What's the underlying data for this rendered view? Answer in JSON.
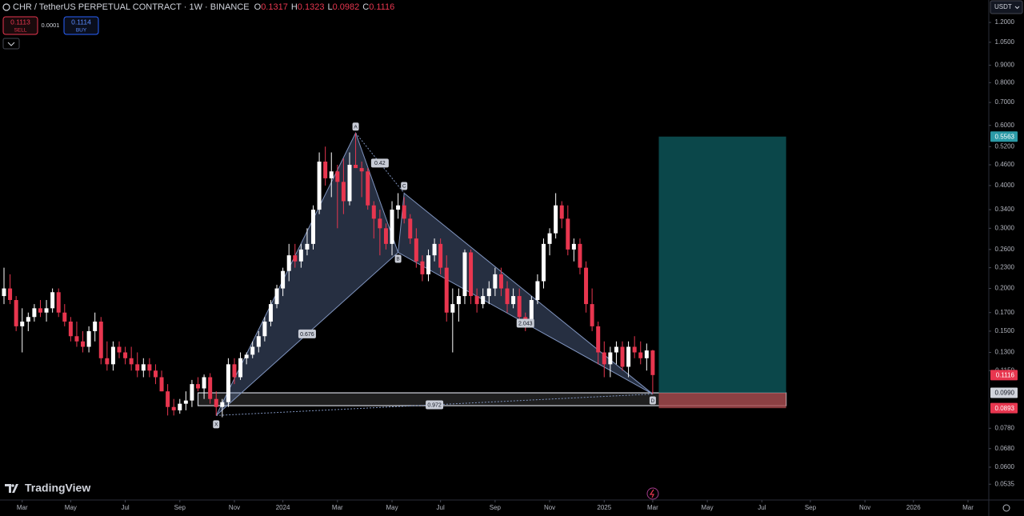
{
  "chart_data": {
    "type": "candlestick",
    "title": "CHR / TetherUS PERPETUAL CONTRACT · 1W · BINANCE",
    "ohlc_labels": [
      "O",
      "H",
      "L",
      "C"
    ],
    "sell": {
      "price": 0.1113,
      "label": "SELL"
    },
    "buy": {
      "price": 0.1114,
      "label": "BUY"
    },
    "spread": 0.0001,
    "currency": "USDT",
    "brand": "TradingView",
    "log_scale": true,
    "grid": false,
    "up_color": "#ffffff",
    "down_color": "#e8364f",
    "pattern_color": "#7f93bd",
    "target_color": "#0f5f63",
    "stop_color": "#a8494c",
    "xlim": [
      -0.66,
      162.3
    ],
    "xticks": [
      {
        "value": 3,
        "label": "Mar"
      },
      {
        "value": 11,
        "label": "May"
      },
      {
        "value": 20,
        "label": "Jul"
      },
      {
        "value": 29,
        "label": "Sep"
      },
      {
        "value": 38,
        "label": "Nov"
      },
      {
        "value": 46,
        "label": "2024"
      },
      {
        "value": 55,
        "label": "Mar"
      },
      {
        "value": 64,
        "label": "May"
      },
      {
        "value": 72,
        "label": "Jul"
      },
      {
        "value": 81,
        "label": "Sep"
      },
      {
        "value": 90,
        "label": "Nov"
      },
      {
        "value": 99,
        "label": "2025"
      },
      {
        "value": 107,
        "label": "Mar"
      },
      {
        "value": 116,
        "label": "May"
      },
      {
        "value": 125,
        "label": "Jul"
      },
      {
        "value": 133,
        "label": "Sep"
      },
      {
        "value": 142,
        "label": "Nov"
      },
      {
        "value": 150,
        "label": "2026"
      },
      {
        "value": 159,
        "label": "Mar"
      }
    ],
    "ylim": [
      0.0481,
      1.396
    ],
    "yticks": [
      {
        "value": 1.2,
        "label": "1.2000"
      },
      {
        "value": 1.05,
        "label": "1.0500"
      },
      {
        "value": 0.9,
        "label": "0.9000"
      },
      {
        "value": 0.8,
        "label": "0.8000"
      },
      {
        "value": 0.7,
        "label": "0.7000"
      },
      {
        "value": 0.6,
        "label": "0.6000"
      },
      {
        "value": 0.52,
        "label": "0.5200"
      },
      {
        "value": 0.46,
        "label": "0.4600"
      },
      {
        "value": 0.4,
        "label": "0.4000"
      },
      {
        "value": 0.34,
        "label": "0.3400"
      },
      {
        "value": 0.3,
        "label": "0.3000"
      },
      {
        "value": 0.26,
        "label": "0.2600"
      },
      {
        "value": 0.23,
        "label": "0.2300"
      },
      {
        "value": 0.2,
        "label": "0.2000"
      },
      {
        "value": 0.17,
        "label": "0.1700"
      },
      {
        "value": 0.15,
        "label": "0.1500"
      },
      {
        "value": 0.13,
        "label": "0.1300"
      },
      {
        "value": 0.115,
        "label": "0.1150"
      },
      {
        "value": 0.078,
        "label": "0.0780"
      },
      {
        "value": 0.068,
        "label": "0.0680"
      },
      {
        "value": 0.06,
        "label": "0.0600"
      },
      {
        "value": 0.0535,
        "label": "0.0535"
      }
    ],
    "candles": [
      {
        "open": 0.19,
        "high": 0.23,
        "low": 0.18,
        "close": 0.2
      },
      {
        "open": 0.2,
        "high": 0.22,
        "low": 0.18,
        "close": 0.185
      },
      {
        "open": 0.185,
        "high": 0.19,
        "low": 0.15,
        "close": 0.155
      },
      {
        "open": 0.155,
        "high": 0.175,
        "low": 0.13,
        "close": 0.16
      },
      {
        "open": 0.16,
        "high": 0.17,
        "low": 0.15,
        "close": 0.165
      },
      {
        "open": 0.165,
        "high": 0.18,
        "low": 0.16,
        "close": 0.175
      },
      {
        "open": 0.175,
        "high": 0.185,
        "low": 0.165,
        "close": 0.17
      },
      {
        "open": 0.17,
        "high": 0.185,
        "low": 0.16,
        "close": 0.175
      },
      {
        "open": 0.175,
        "high": 0.2,
        "low": 0.17,
        "close": 0.195
      },
      {
        "open": 0.195,
        "high": 0.2,
        "low": 0.165,
        "close": 0.17
      },
      {
        "open": 0.17,
        "high": 0.18,
        "low": 0.155,
        "close": 0.16
      },
      {
        "open": 0.16,
        "high": 0.165,
        "low": 0.14,
        "close": 0.145
      },
      {
        "open": 0.145,
        "high": 0.16,
        "low": 0.135,
        "close": 0.14
      },
      {
        "open": 0.14,
        "high": 0.15,
        "low": 0.13,
        "close": 0.135
      },
      {
        "open": 0.135,
        "high": 0.155,
        "low": 0.13,
        "close": 0.15
      },
      {
        "open": 0.15,
        "high": 0.17,
        "low": 0.14,
        "close": 0.16
      },
      {
        "open": 0.16,
        "high": 0.165,
        "low": 0.12,
        "close": 0.125
      },
      {
        "open": 0.125,
        "high": 0.14,
        "low": 0.115,
        "close": 0.12
      },
      {
        "open": 0.12,
        "high": 0.14,
        "low": 0.115,
        "close": 0.135
      },
      {
        "open": 0.135,
        "high": 0.14,
        "low": 0.125,
        "close": 0.13
      },
      {
        "open": 0.13,
        "high": 0.135,
        "low": 0.12,
        "close": 0.125
      },
      {
        "open": 0.125,
        "high": 0.135,
        "low": 0.115,
        "close": 0.12
      },
      {
        "open": 0.12,
        "high": 0.13,
        "low": 0.11,
        "close": 0.115
      },
      {
        "open": 0.115,
        "high": 0.125,
        "low": 0.11,
        "close": 0.12
      },
      {
        "open": 0.12,
        "high": 0.125,
        "low": 0.11,
        "close": 0.115
      },
      {
        "open": 0.115,
        "high": 0.12,
        "low": 0.105,
        "close": 0.11
      },
      {
        "open": 0.11,
        "high": 0.115,
        "low": 0.1,
        "close": 0.1
      },
      {
        "open": 0.1,
        "high": 0.105,
        "low": 0.085,
        "close": 0.09
      },
      {
        "open": 0.09,
        "high": 0.095,
        "low": 0.085,
        "close": 0.088
      },
      {
        "open": 0.088,
        "high": 0.095,
        "low": 0.086,
        "close": 0.092
      },
      {
        "open": 0.092,
        "high": 0.1,
        "low": 0.088,
        "close": 0.094
      },
      {
        "open": 0.094,
        "high": 0.108,
        "low": 0.09,
        "close": 0.105
      },
      {
        "open": 0.105,
        "high": 0.11,
        "low": 0.1,
        "close": 0.102
      },
      {
        "open": 0.102,
        "high": 0.112,
        "low": 0.095,
        "close": 0.11
      },
      {
        "open": 0.11,
        "high": 0.113,
        "low": 0.092,
        "close": 0.095
      },
      {
        "open": 0.095,
        "high": 0.1,
        "low": 0.085,
        "close": 0.09
      },
      {
        "open": 0.09,
        "high": 0.095,
        "low": 0.084,
        "close": 0.093
      },
      {
        "open": 0.093,
        "high": 0.125,
        "low": 0.09,
        "close": 0.12
      },
      {
        "open": 0.12,
        "high": 0.125,
        "low": 0.105,
        "close": 0.11
      },
      {
        "open": 0.11,
        "high": 0.13,
        "low": 0.108,
        "close": 0.125
      },
      {
        "open": 0.125,
        "high": 0.13,
        "low": 0.12,
        "close": 0.128
      },
      {
        "open": 0.128,
        "high": 0.14,
        "low": 0.125,
        "close": 0.135
      },
      {
        "open": 0.135,
        "high": 0.15,
        "low": 0.13,
        "close": 0.145
      },
      {
        "open": 0.145,
        "high": 0.165,
        "low": 0.14,
        "close": 0.16
      },
      {
        "open": 0.16,
        "high": 0.185,
        "low": 0.155,
        "close": 0.18
      },
      {
        "open": 0.18,
        "high": 0.205,
        "low": 0.175,
        "close": 0.2
      },
      {
        "open": 0.2,
        "high": 0.23,
        "low": 0.19,
        "close": 0.225
      },
      {
        "open": 0.225,
        "high": 0.27,
        "low": 0.21,
        "close": 0.25
      },
      {
        "open": 0.25,
        "high": 0.27,
        "low": 0.23,
        "close": 0.24
      },
      {
        "open": 0.24,
        "high": 0.27,
        "low": 0.23,
        "close": 0.26
      },
      {
        "open": 0.26,
        "high": 0.3,
        "low": 0.25,
        "close": 0.27
      },
      {
        "open": 0.27,
        "high": 0.35,
        "low": 0.26,
        "close": 0.34
      },
      {
        "open": 0.34,
        "high": 0.5,
        "low": 0.33,
        "close": 0.47
      },
      {
        "open": 0.47,
        "high": 0.52,
        "low": 0.4,
        "close": 0.42
      },
      {
        "open": 0.42,
        "high": 0.5,
        "low": 0.37,
        "close": 0.44
      },
      {
        "open": 0.44,
        "high": 0.46,
        "low": 0.3,
        "close": 0.41
      },
      {
        "open": 0.41,
        "high": 0.48,
        "low": 0.33,
        "close": 0.36
      },
      {
        "open": 0.36,
        "high": 0.5,
        "low": 0.35,
        "close": 0.46
      },
      {
        "open": 0.46,
        "high": 0.57,
        "low": 0.45,
        "close": 0.45
      },
      {
        "open": 0.45,
        "high": 0.47,
        "low": 0.37,
        "close": 0.44
      },
      {
        "open": 0.44,
        "high": 0.45,
        "low": 0.34,
        "close": 0.35
      },
      {
        "open": 0.35,
        "high": 0.36,
        "low": 0.28,
        "close": 0.32
      },
      {
        "open": 0.32,
        "high": 0.34,
        "low": 0.25,
        "close": 0.3
      },
      {
        "open": 0.3,
        "high": 0.31,
        "low": 0.26,
        "close": 0.27
      },
      {
        "open": 0.27,
        "high": 0.36,
        "low": 0.25,
        "close": 0.34
      },
      {
        "open": 0.34,
        "high": 0.38,
        "low": 0.32,
        "close": 0.35
      },
      {
        "open": 0.35,
        "high": 0.37,
        "low": 0.31,
        "close": 0.32
      },
      {
        "open": 0.32,
        "high": 0.33,
        "low": 0.27,
        "close": 0.28
      },
      {
        "open": 0.28,
        "high": 0.3,
        "low": 0.23,
        "close": 0.24
      },
      {
        "open": 0.24,
        "high": 0.25,
        "low": 0.21,
        "close": 0.22
      },
      {
        "open": 0.22,
        "high": 0.26,
        "low": 0.21,
        "close": 0.25
      },
      {
        "open": 0.25,
        "high": 0.28,
        "low": 0.24,
        "close": 0.27
      },
      {
        "open": 0.27,
        "high": 0.28,
        "low": 0.22,
        "close": 0.23
      },
      {
        "open": 0.23,
        "high": 0.25,
        "low": 0.16,
        "close": 0.17
      },
      {
        "open": 0.17,
        "high": 0.2,
        "low": 0.13,
        "close": 0.18
      },
      {
        "open": 0.18,
        "high": 0.2,
        "low": 0.16,
        "close": 0.19
      },
      {
        "open": 0.19,
        "high": 0.26,
        "low": 0.18,
        "close": 0.255
      },
      {
        "open": 0.255,
        "high": 0.26,
        "low": 0.18,
        "close": 0.19
      },
      {
        "open": 0.19,
        "high": 0.2,
        "low": 0.17,
        "close": 0.18
      },
      {
        "open": 0.18,
        "high": 0.2,
        "low": 0.175,
        "close": 0.19
      },
      {
        "open": 0.19,
        "high": 0.21,
        "low": 0.18,
        "close": 0.2
      },
      {
        "open": 0.2,
        "high": 0.23,
        "low": 0.19,
        "close": 0.22
      },
      {
        "open": 0.22,
        "high": 0.23,
        "low": 0.19,
        "close": 0.2
      },
      {
        "open": 0.2,
        "high": 0.21,
        "low": 0.17,
        "close": 0.18
      },
      {
        "open": 0.18,
        "high": 0.2,
        "low": 0.175,
        "close": 0.19
      },
      {
        "open": 0.19,
        "high": 0.2,
        "low": 0.16,
        "close": 0.165
      },
      {
        "open": 0.165,
        "high": 0.17,
        "low": 0.15,
        "close": 0.16
      },
      {
        "open": 0.16,
        "high": 0.19,
        "low": 0.155,
        "close": 0.185
      },
      {
        "open": 0.185,
        "high": 0.22,
        "low": 0.18,
        "close": 0.21
      },
      {
        "open": 0.21,
        "high": 0.28,
        "low": 0.2,
        "close": 0.27
      },
      {
        "open": 0.27,
        "high": 0.3,
        "low": 0.25,
        "close": 0.29
      },
      {
        "open": 0.29,
        "high": 0.38,
        "low": 0.28,
        "close": 0.35
      },
      {
        "open": 0.35,
        "high": 0.36,
        "low": 0.3,
        "close": 0.32
      },
      {
        "open": 0.32,
        "high": 0.35,
        "low": 0.25,
        "close": 0.26
      },
      {
        "open": 0.26,
        "high": 0.28,
        "low": 0.24,
        "close": 0.27
      },
      {
        "open": 0.27,
        "high": 0.28,
        "low": 0.22,
        "close": 0.23
      },
      {
        "open": 0.23,
        "high": 0.24,
        "low": 0.17,
        "close": 0.18
      },
      {
        "open": 0.18,
        "high": 0.2,
        "low": 0.15,
        "close": 0.155
      },
      {
        "open": 0.155,
        "high": 0.16,
        "low": 0.12,
        "close": 0.13
      },
      {
        "open": 0.13,
        "high": 0.14,
        "low": 0.11,
        "close": 0.12
      },
      {
        "open": 0.12,
        "high": 0.135,
        "low": 0.11,
        "close": 0.13
      },
      {
        "open": 0.13,
        "high": 0.14,
        "low": 0.12,
        "close": 0.135
      },
      {
        "open": 0.135,
        "high": 0.14,
        "low": 0.115,
        "close": 0.118
      },
      {
        "open": 0.118,
        "high": 0.14,
        "low": 0.11,
        "close": 0.135
      },
      {
        "open": 0.135,
        "high": 0.145,
        "low": 0.125,
        "close": 0.13
      },
      {
        "open": 0.13,
        "high": 0.14,
        "low": 0.12,
        "close": 0.125
      },
      {
        "open": 0.125,
        "high": 0.138,
        "low": 0.115,
        "close": 0.1317
      },
      {
        "open": 0.1317,
        "high": 0.1323,
        "low": 0.0982,
        "close": 0.1116
      }
    ],
    "pattern": {
      "points": [
        {
          "label": "X",
          "index": 35,
          "price": 0.085
        },
        {
          "label": "A",
          "index": 58,
          "price": 0.57
        },
        {
          "label": "B",
          "index": 65,
          "price": 0.255
        },
        {
          "label": "C",
          "index": 66,
          "price": 0.38
        },
        {
          "label": "D",
          "index": 107,
          "price": 0.0982
        }
      ],
      "ratios": [
        0.42,
        0.676,
        2.043,
        0.972
      ]
    },
    "zone": {
      "start": 32,
      "end": 129,
      "low": 0.0908,
      "high": 0.099
    },
    "position": {
      "start": 108,
      "end": 129,
      "target": 0.5563,
      "entry": {
        "value": 0.099,
        "label": "0.0990"
      },
      "stop": 0.0893
    }
  }
}
